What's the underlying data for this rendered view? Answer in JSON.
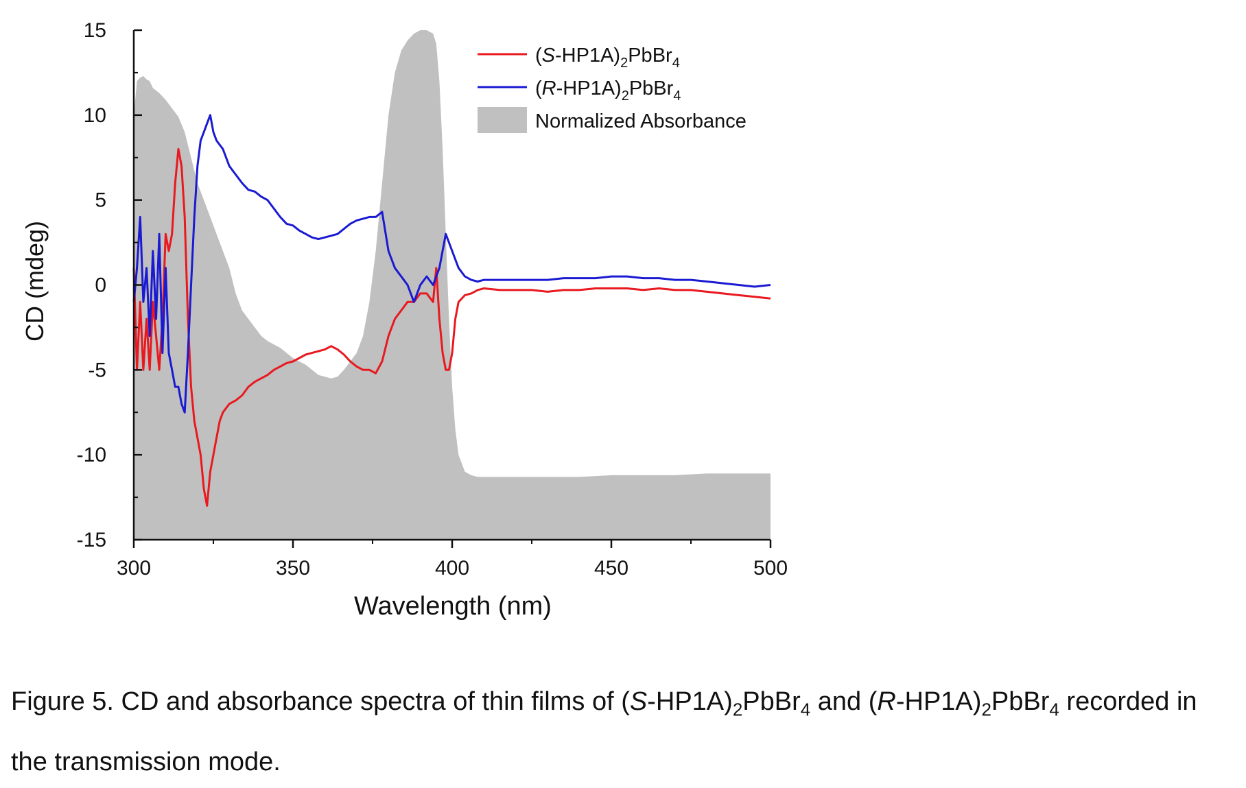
{
  "chart_data": {
    "type": "line",
    "xlabel": "Wavelength (nm)",
    "ylabel": "CD (mdeg)",
    "xlim": [
      300,
      500
    ],
    "ylim": [
      -15,
      15
    ],
    "xticks": [
      300,
      350,
      400,
      450,
      500
    ],
    "yticks": [
      -15,
      -10,
      -5,
      0,
      5,
      10,
      15
    ],
    "grid": false,
    "legend_position": "top-right",
    "legend": [
      {
        "prefix": "(",
        "italic": "S",
        "mid": "-HP1A)",
        "sub1": "2",
        "mid2": "PbBr",
        "sub2": "4"
      },
      {
        "prefix": "(",
        "italic": "R",
        "mid": "-HP1A)",
        "sub1": "2",
        "mid2": "PbBr",
        "sub2": "4"
      },
      {
        "text": "Normalized Absorbance"
      }
    ],
    "series": [
      {
        "color": "#e8191f",
        "kind": "line",
        "x": [
          300,
          301,
          302,
          303,
          304,
          305,
          306,
          307,
          308,
          309,
          310,
          311,
          312,
          313,
          314,
          315,
          316,
          317,
          318,
          319,
          320,
          321,
          322,
          323,
          324,
          325,
          326,
          327,
          328,
          330,
          332,
          334,
          336,
          338,
          340,
          342,
          344,
          346,
          348,
          350,
          352,
          354,
          356,
          358,
          360,
          362,
          364,
          366,
          368,
          370,
          372,
          374,
          376,
          378,
          380,
          382,
          384,
          386,
          388,
          390,
          392,
          394,
          395,
          396,
          397,
          398,
          399,
          400,
          401,
          402,
          404,
          406,
          408,
          410,
          415,
          420,
          425,
          430,
          435,
          440,
          445,
          450,
          455,
          460,
          465,
          470,
          475,
          480,
          485,
          490,
          495,
          500
        ],
        "y": [
          1,
          -5,
          -1,
          -5,
          -2,
          -5,
          -1,
          -3,
          -5,
          -2,
          3,
          2,
          3,
          6,
          8,
          7,
          4,
          -2,
          -6,
          -8,
          -9,
          -10,
          -12,
          -13,
          -11,
          -10,
          -9,
          -8,
          -7.5,
          -7,
          -6.8,
          -6.5,
          -6,
          -5.7,
          -5.5,
          -5.3,
          -5,
          -4.8,
          -4.6,
          -4.5,
          -4.3,
          -4.1,
          -4,
          -3.9,
          -3.8,
          -3.6,
          -3.8,
          -4.1,
          -4.5,
          -4.8,
          -5,
          -5,
          -5.2,
          -4.5,
          -3,
          -2,
          -1.5,
          -1,
          -1,
          -0.5,
          -0.5,
          -1,
          1,
          -2,
          -4,
          -5,
          -5,
          -4,
          -2,
          -1,
          -0.6,
          -0.5,
          -0.3,
          -0.2,
          -0.3,
          -0.3,
          -0.3,
          -0.4,
          -0.3,
          -0.3,
          -0.2,
          -0.2,
          -0.2,
          -0.3,
          -0.2,
          -0.3,
          -0.3,
          -0.4,
          -0.5,
          -0.6,
          -0.7,
          -0.8
        ]
      },
      {
        "color": "#1a1ad2",
        "kind": "line",
        "x": [
          300,
          301,
          302,
          303,
          304,
          305,
          306,
          307,
          308,
          309,
          310,
          311,
          312,
          313,
          314,
          315,
          316,
          317,
          318,
          319,
          320,
          321,
          322,
          323,
          324,
          325,
          326,
          328,
          330,
          332,
          334,
          336,
          338,
          340,
          342,
          344,
          346,
          348,
          350,
          352,
          354,
          356,
          358,
          360,
          362,
          364,
          366,
          368,
          370,
          372,
          374,
          376,
          378,
          380,
          382,
          384,
          386,
          388,
          390,
          392,
          394,
          396,
          398,
          400,
          402,
          404,
          406,
          408,
          410,
          415,
          420,
          425,
          430,
          435,
          440,
          445,
          450,
          455,
          460,
          465,
          470,
          475,
          480,
          485,
          490,
          495,
          500
        ],
        "y": [
          -1,
          1,
          4,
          -1,
          1,
          -3,
          2,
          -2,
          3,
          -4,
          1,
          -4,
          -5,
          -6,
          -6,
          -7,
          -7.5,
          -4,
          0,
          4,
          7,
          8.5,
          9,
          9.5,
          10,
          9,
          8.5,
          8,
          7,
          6.5,
          6,
          5.6,
          5.5,
          5.2,
          5,
          4.5,
          4,
          3.6,
          3.5,
          3.2,
          3,
          2.8,
          2.7,
          2.8,
          2.9,
          3,
          3.3,
          3.6,
          3.8,
          3.9,
          4,
          4,
          4.3,
          2,
          1,
          0.5,
          0,
          -1,
          0,
          0.5,
          0,
          1,
          3,
          2,
          1,
          0.5,
          0.3,
          0.2,
          0.3,
          0.3,
          0.3,
          0.3,
          0.3,
          0.4,
          0.4,
          0.4,
          0.5,
          0.5,
          0.4,
          0.4,
          0.3,
          0.3,
          0.2,
          0.1,
          0,
          -0.1,
          0
        ]
      },
      {
        "color": "#c0c0c0",
        "kind": "area",
        "x": [
          300,
          301,
          302,
          303,
          304,
          305,
          306,
          308,
          310,
          312,
          314,
          316,
          318,
          320,
          322,
          324,
          326,
          328,
          330,
          332,
          334,
          336,
          338,
          340,
          342,
          344,
          346,
          348,
          350,
          352,
          354,
          356,
          358,
          360,
          362,
          364,
          366,
          368,
          370,
          372,
          374,
          376,
          378,
          380,
          382,
          384,
          386,
          388,
          390,
          392,
          394,
          395,
          396,
          397,
          398,
          399,
          400,
          401,
          402,
          404,
          406,
          408,
          410,
          420,
          430,
          440,
          450,
          460,
          470,
          480,
          490,
          495,
          500
        ],
        "y": [
          10,
          12,
          12.2,
          12.3,
          12.1,
          12,
          11.6,
          11.3,
          10.9,
          10.4,
          9.9,
          9,
          7.5,
          6,
          5,
          4,
          3,
          2,
          1,
          -0.5,
          -1.5,
          -2,
          -2.5,
          -3,
          -3.3,
          -3.5,
          -3.7,
          -4,
          -4.3,
          -4.5,
          -4.7,
          -5,
          -5.3,
          -5.4,
          -5.5,
          -5.4,
          -5,
          -4.5,
          -4,
          -3,
          -1,
          2,
          6,
          10,
          12.5,
          13.8,
          14.4,
          14.8,
          15,
          15,
          14.8,
          14.2,
          12,
          8,
          3,
          -2,
          -6,
          -8.5,
          -10,
          -11,
          -11.2,
          -11.3,
          -11.3,
          -11.3,
          -11.3,
          -11.3,
          -11.2,
          -11.2,
          -11.2,
          -11.1,
          -11.1,
          -11.1,
          -11.1
        ]
      }
    ]
  },
  "caption": {
    "line1": [
      "Figure 5. CD and absorbance spectra of thin films of (",
      "S",
      "-HP1A)",
      "2",
      "PbBr",
      "4",
      " and (",
      "R",
      "-HP1A)",
      "2",
      "PbBr",
      "4",
      " recorded in"
    ],
    "line2": "the transmission mode."
  }
}
